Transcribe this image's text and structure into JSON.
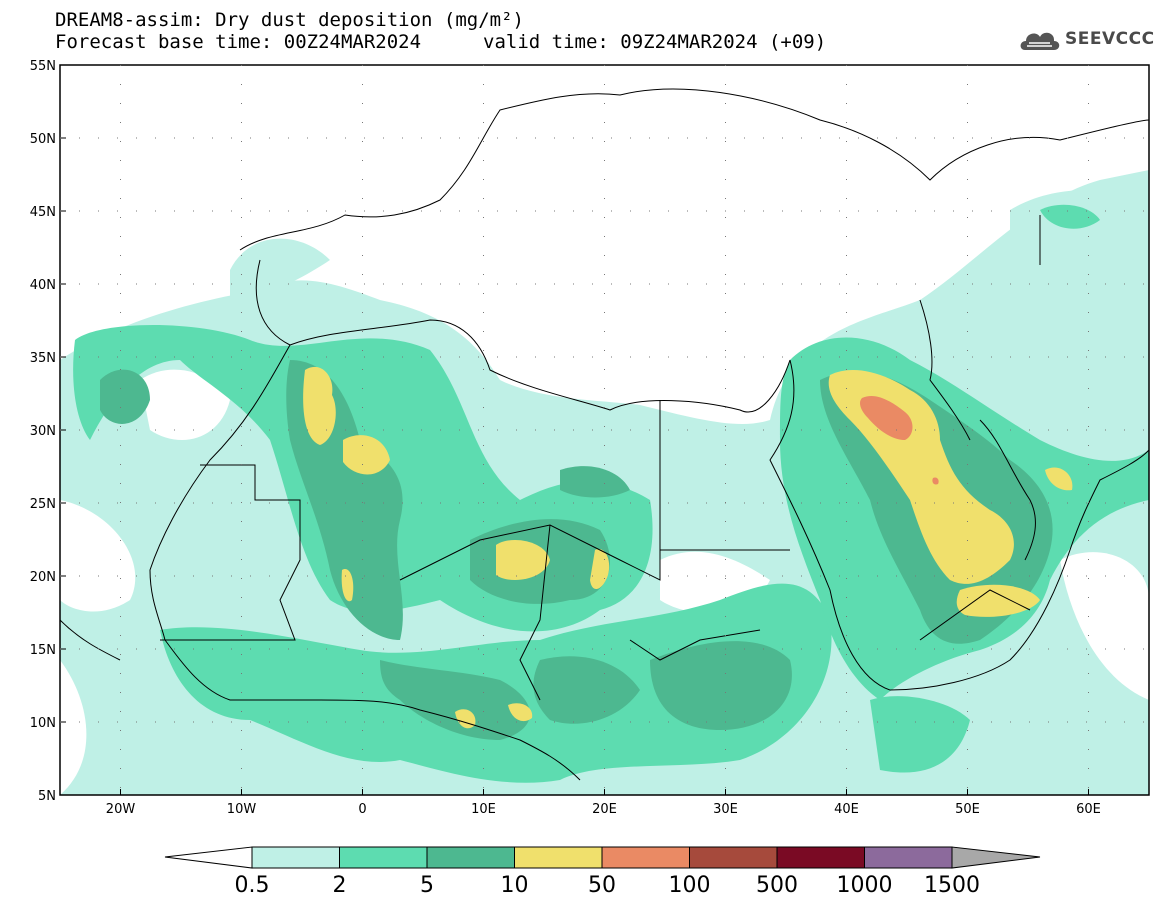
{
  "title": {
    "line1": "DREAM8-assim: Dry dust deposition (mg/m²)",
    "line2": "Forecast base time: 00Z24MAR2024",
    "valid": "valid time: 09Z24MAR2024 (+09)"
  },
  "logo": {
    "text": "SEEVCCC",
    "icon": "cloud-icon"
  },
  "map": {
    "projection": "lat-lon",
    "lon_range": [
      -25,
      65
    ],
    "lat_range": [
      5,
      55
    ],
    "lat_ticks": [
      "55N",
      "50N",
      "45N",
      "40N",
      "35N",
      "30N",
      "25N",
      "20N",
      "15N",
      "10N",
      "5N"
    ],
    "lon_ticks": [
      "20W",
      "10W",
      "0",
      "10E",
      "20E",
      "30E",
      "40E",
      "50E",
      "60E"
    ]
  },
  "colorbar": {
    "labels": [
      "0.5",
      "2",
      "5",
      "10",
      "50",
      "100",
      "500",
      "1000",
      "1500"
    ],
    "colors": [
      "#bff0e6",
      "#5ddcb0",
      "#4db890",
      "#f0e06c",
      "#ea8a64",
      "#a64a3c",
      "#7a0a24",
      "#8c6a9c",
      "#a8a8a8"
    ],
    "under_color": "#ffffff"
  }
}
